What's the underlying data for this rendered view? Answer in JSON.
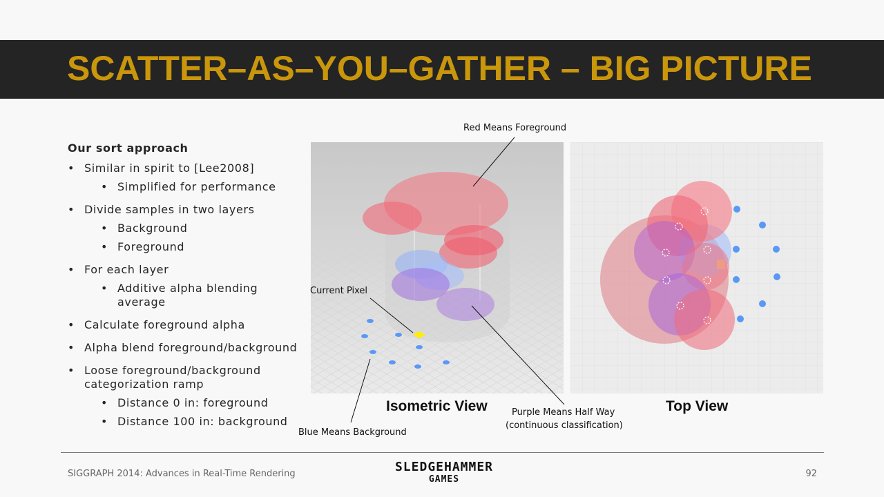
{
  "title": "SCATTER–AS–YOU–GATHER – BIG PICTURE",
  "bullets": {
    "heading": "Our sort approach",
    "items": [
      {
        "level": 1,
        "text": "Similar  in spirit to [Lee2008]"
      },
      {
        "level": 2,
        "text": "Simplified  for performance"
      },
      {
        "level": 1,
        "text": "Divide samples in two layers"
      },
      {
        "level": 2,
        "text": "Background"
      },
      {
        "level": 2,
        "text": "Foreground"
      },
      {
        "level": 1,
        "text": "For each layer"
      },
      {
        "level": 2,
        "text": "Additive alpha blending average"
      },
      {
        "level": 1,
        "text": "Calculate  foreground alpha"
      },
      {
        "level": 1,
        "text": "Alpha blend foreground/background"
      },
      {
        "level": 1,
        "text": "Loose foreground/background categorization ramp"
      },
      {
        "level": 2,
        "text": "Distance 0 in: foreground"
      },
      {
        "level": 2,
        "text": "Distance 100 in: background"
      }
    ]
  },
  "figure": {
    "callout_red": "Red Means Foreground",
    "callout_current": "Current Pixel",
    "callout_blue": "Blue Means Background",
    "callout_purple_1": "Purple Means Half Way",
    "callout_purple_2": "(continuous classification)",
    "label_iso": "Isometric View",
    "label_top": "Top View",
    "colors": {
      "red": "#f06070",
      "blue": "#5a98f5",
      "purple": "#a070e0",
      "highlight": "#ffee00"
    }
  },
  "footer": {
    "left": "SIGGRAPH 2014: Advances in Real-Time Rendering",
    "logo_line1": "SLEDGEHAMMER",
    "logo_line2": "GAMES",
    "page": "92"
  }
}
